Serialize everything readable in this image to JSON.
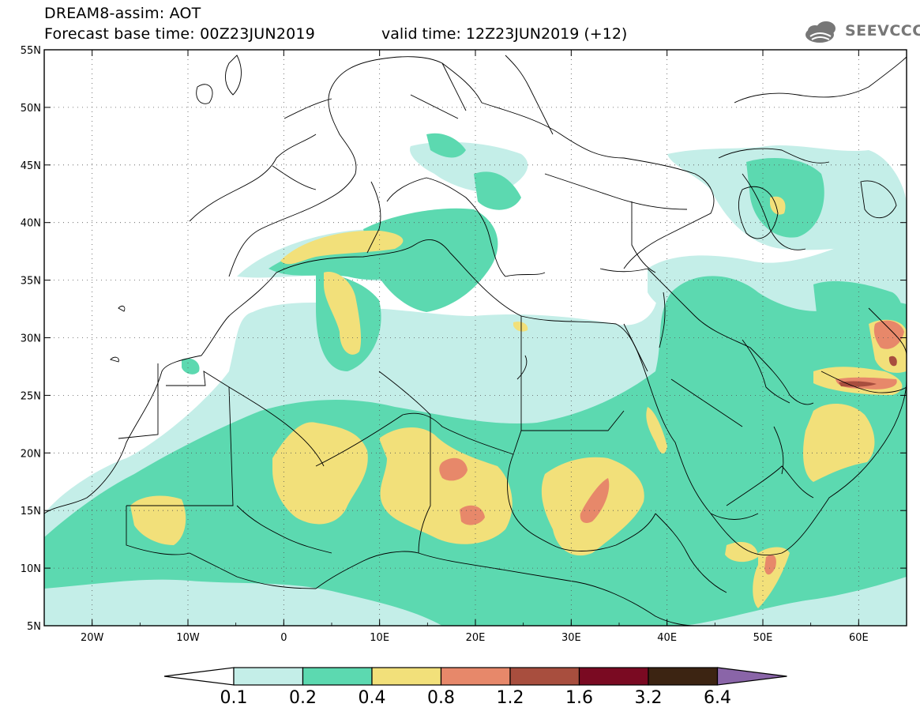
{
  "header": {
    "line1": "DREAM8-assim: AOT",
    "line2": "Forecast base time: 00Z23JUN2019",
    "valid": "valid time: 12Z23JUN2019 (+12)"
  },
  "logo": {
    "text": "SEEVCCC",
    "icon": "cloud-icon"
  },
  "map": {
    "lon_range": [
      -25,
      65
    ],
    "lat_range": [
      5,
      55
    ],
    "lat_ticks": [
      "5N",
      "10N",
      "15N",
      "20N",
      "25N",
      "30N",
      "35N",
      "40N",
      "45N",
      "50N",
      "55N"
    ],
    "lon_ticks": [
      "20W",
      "10W",
      "0",
      "10E",
      "20E",
      "30E",
      "40E",
      "50E",
      "60E"
    ]
  },
  "colorbar": {
    "labels": [
      "0.1",
      "0.2",
      "0.4",
      "0.8",
      "1.2",
      "1.6",
      "3.2",
      "6.4"
    ],
    "colors": [
      "#c4eee8",
      "#5cd9b0",
      "#f2e07a",
      "#e7886a",
      "#a84e3e",
      "#7a0a22",
      "#3c2412",
      "#8a65a8"
    ],
    "open_end_color": "#ffffff"
  },
  "levels": {
    "0.1": "#c4eee8",
    "0.2": "#5cd9b0",
    "0.4": "#f2e07a",
    "0.8": "#e7886a",
    "1.2": "#a84e3e"
  }
}
